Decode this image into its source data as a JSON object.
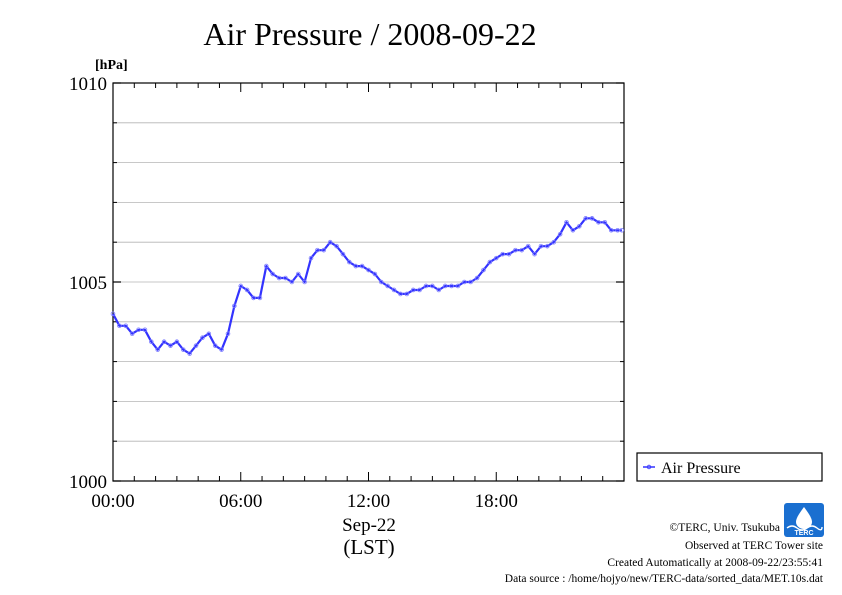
{
  "chart_data": {
    "type": "line",
    "title": "Air Pressure / 2008-09-22",
    "ylabel": "[hPa]",
    "xlabel_line1": "Sep-22",
    "xlabel_line2": "(LST)",
    "ylim": [
      1000,
      1010
    ],
    "xlim_hours": [
      0,
      24
    ],
    "y_ticks": [
      1000,
      1005,
      1010
    ],
    "y_tick_labels": [
      "1000",
      "1005",
      "1010"
    ],
    "x_ticks": [
      0,
      6,
      12,
      18
    ],
    "x_tick_labels": [
      "00:00",
      "06:00",
      "12:00",
      "18:00"
    ],
    "grid": true,
    "legend_position": "right-bottom",
    "series": [
      {
        "name": "Air Pressure",
        "color": "#3333ff",
        "x_hours": [
          0.0,
          0.3,
          0.6,
          0.9,
          1.2,
          1.5,
          1.8,
          2.1,
          2.4,
          2.7,
          3.0,
          3.3,
          3.6,
          3.9,
          4.2,
          4.5,
          4.8,
          5.1,
          5.4,
          5.7,
          6.0,
          6.3,
          6.6,
          6.9,
          7.2,
          7.5,
          7.8,
          8.1,
          8.4,
          8.7,
          9.0,
          9.3,
          9.6,
          9.9,
          10.2,
          10.5,
          10.8,
          11.1,
          11.4,
          11.7,
          12.0,
          12.3,
          12.6,
          12.9,
          13.2,
          13.5,
          13.8,
          14.1,
          14.4,
          14.7,
          15.0,
          15.3,
          15.6,
          15.9,
          16.2,
          16.5,
          16.8,
          17.1,
          17.4,
          17.7,
          18.0,
          18.3,
          18.6,
          18.9,
          19.2,
          19.5,
          19.8,
          20.1,
          20.4,
          20.7,
          21.0,
          21.3,
          21.6,
          21.9,
          22.2,
          22.5,
          22.8,
          23.1,
          23.4,
          23.7,
          23.9
        ],
        "values": [
          1004.2,
          1003.9,
          1003.9,
          1003.7,
          1003.8,
          1003.8,
          1003.5,
          1003.3,
          1003.5,
          1003.4,
          1003.5,
          1003.3,
          1003.2,
          1003.4,
          1003.6,
          1003.7,
          1003.4,
          1003.3,
          1003.7,
          1004.4,
          1004.9,
          1004.8,
          1004.6,
          1004.6,
          1005.4,
          1005.2,
          1005.1,
          1005.1,
          1005.0,
          1005.2,
          1005.0,
          1005.6,
          1005.8,
          1005.8,
          1006.0,
          1005.9,
          1005.7,
          1005.5,
          1005.4,
          1005.4,
          1005.3,
          1005.2,
          1005.0,
          1004.9,
          1004.8,
          1004.7,
          1004.7,
          1004.8,
          1004.8,
          1004.9,
          1004.9,
          1004.8,
          1004.9,
          1004.9,
          1004.9,
          1005.0,
          1005.0,
          1005.1,
          1005.3,
          1005.5,
          1005.6,
          1005.7,
          1005.7,
          1005.8,
          1005.8,
          1005.9,
          1005.7,
          1005.9,
          1005.9,
          1006.0,
          1006.2,
          1006.5,
          1006.3,
          1006.4,
          1006.6,
          1006.6,
          1006.5,
          1006.5,
          1006.3,
          1006.3,
          1006.3
        ]
      }
    ]
  },
  "footer": {
    "copyright": "©TERC, Univ. Tsukuba",
    "observed": "Observed at TERC Tower site",
    "created": "Created Automatically at 2008-09-22/23:55:41",
    "source": "Data source : /home/hojyo/new/TERC-data/sorted_data/MET.10s.dat"
  },
  "logo": {
    "text": "TERC",
    "color": "#1a6fd0"
  }
}
